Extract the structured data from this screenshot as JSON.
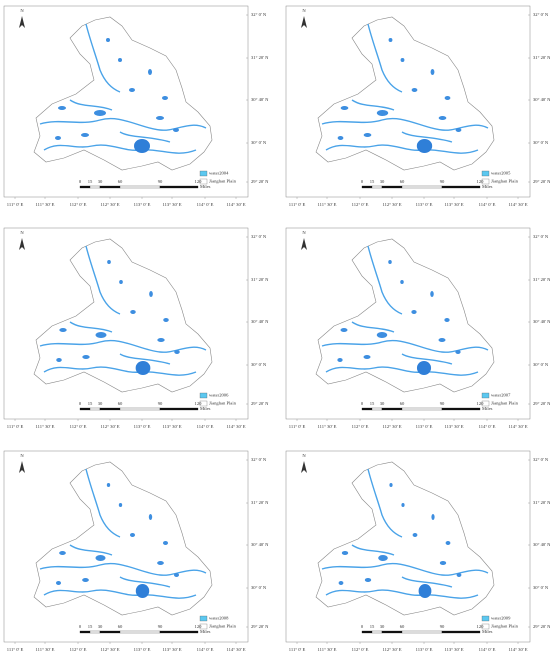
{
  "panels": [
    {
      "legend_water": "water2004"
    },
    {
      "legend_water": "water2005"
    },
    {
      "legend_water": "water2006"
    },
    {
      "legend_water": "water2007"
    },
    {
      "legend_water": "water2008"
    },
    {
      "legend_water": "water2009"
    }
  ],
  "legend_plain": "Jianghan Plain",
  "north": "N",
  "scale": {
    "ticks": [
      "0",
      "15",
      "30",
      "60",
      "90",
      "120"
    ],
    "unit": "Miles"
  },
  "latitudes": [
    "32° 0' N",
    "31° 20' N",
    "30° 40' N",
    "30° 0' N",
    "29° 20' N"
  ],
  "longitudes": [
    "111° 0' E",
    "111° 30' E",
    "112° 0' E",
    "112° 30' E",
    "113° 0' E",
    "113° 30' E",
    "114° 0' E",
    "114° 30' E"
  ]
}
